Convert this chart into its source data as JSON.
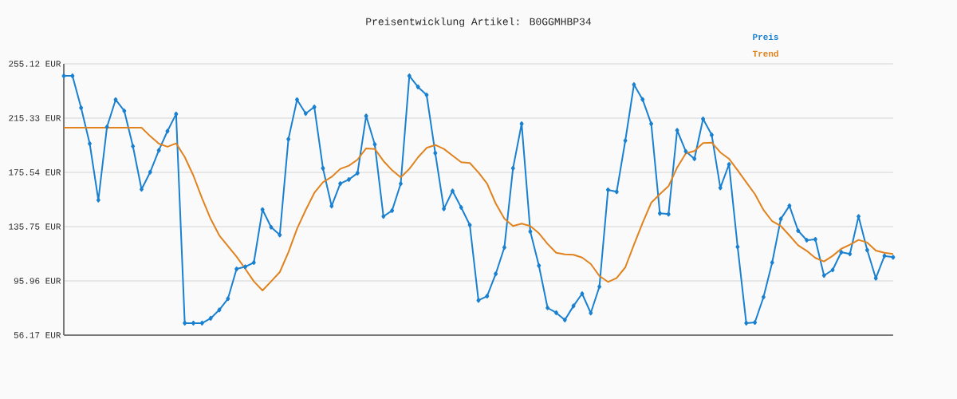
{
  "chart_data": {
    "type": "line",
    "title": "Preisentwicklung Artikel: B0GGMHBP34",
    "categories": [
      null,
      null,
      null,
      null,
      null,
      null,
      null,
      null,
      null,
      null,
      null,
      null,
      null,
      null,
      null,
      null,
      null,
      null,
      null,
      null,
      null,
      null,
      null,
      null,
      null,
      null,
      null,
      null,
      null,
      null,
      null,
      null,
      null,
      null,
      null,
      null,
      null,
      null,
      null,
      null,
      null,
      null,
      null,
      null,
      null,
      null,
      null,
      null,
      null,
      null,
      null,
      null,
      null,
      null,
      null,
      null,
      null,
      null,
      null,
      null,
      null,
      null,
      null,
      null,
      null,
      null,
      null,
      null,
      null,
      null,
      null,
      null,
      null,
      null,
      null,
      null,
      null,
      null,
      null,
      null,
      null,
      null,
      null,
      null,
      null,
      null,
      null,
      null,
      null,
      null,
      null,
      null,
      null,
      null,
      null,
      null,
      null
    ],
    "series": [
      {
        "name": "Preis",
        "color": "#1a80d0",
        "marker": "diamond",
        "values": [
          246.3,
          246.3,
          222.9,
          196.6,
          155.2,
          208.9,
          228.8,
          220.6,
          194.7,
          163.1,
          175.7,
          191.7,
          205.8,
          218.3,
          65.0,
          65.0,
          65.0,
          68.5,
          74.7,
          82.9,
          104.7,
          106.3,
          109.4,
          148.2,
          135.3,
          129.7,
          199.9,
          228.8,
          218.7,
          223.5,
          178.5,
          150.8,
          167.3,
          170.3,
          175.0,
          216.9,
          196.0,
          143.2,
          147.5,
          167.2,
          246.3,
          238.2,
          232.3,
          189.6,
          148.8,
          161.9,
          149.8,
          136.9,
          81.7,
          84.8,
          101.1,
          120.5,
          178.5,
          211.2,
          132.2,
          107.1,
          76.2,
          72.6,
          67.3,
          77.6,
          86.6,
          72.4,
          91.7,
          162.7,
          161.3,
          198.8,
          239.9,
          229.0,
          211.2,
          145.5,
          144.9,
          206.4,
          190.9,
          185.5,
          214.7,
          203.0,
          164.2,
          181.4,
          120.9,
          65.0,
          65.5,
          84.1,
          109.4,
          141.4,
          151.0,
          132.8,
          125.8,
          126.4,
          99.9,
          104.0,
          117.0,
          115.7,
          143.2,
          118.6,
          97.9,
          114.3,
          113.3
        ]
      },
      {
        "name": "Trend",
        "color": "#e0821e",
        "marker": "none",
        "values": [
          208.3,
          208.3,
          208.3,
          208.3,
          208.3,
          208.3,
          208.3,
          208.3,
          208.3,
          208.3,
          202.1,
          196.6,
          194.3,
          196.8,
          186.8,
          173.2,
          156.6,
          141.4,
          129.3,
          121.5,
          113.7,
          104.9,
          95.6,
          88.9,
          95.6,
          102.4,
          117.0,
          134.2,
          147.9,
          160.5,
          168.3,
          172.2,
          178.1,
          180.4,
          184.9,
          193.1,
          192.7,
          183.9,
          177.1,
          171.9,
          178.1,
          186.5,
          193.5,
          195.6,
          192.7,
          187.8,
          183.0,
          182.4,
          175.5,
          167.3,
          152.7,
          141.6,
          136.2,
          137.9,
          136.2,
          130.9,
          123.1,
          116.6,
          115.4,
          115.1,
          113.1,
          108.4,
          99.6,
          95.2,
          98.1,
          105.9,
          122.5,
          138.5,
          153.3,
          159.6,
          165.4,
          179.1,
          189.4,
          191.2,
          197.0,
          197.4,
          190.2,
          185.5,
          177.1,
          168.3,
          159.6,
          147.9,
          139.7,
          136.2,
          129.3,
          122.1,
          118.0,
          112.8,
          110.2,
          114.3,
          119.5,
          122.5,
          126.0,
          124.1,
          118.2,
          116.6,
          115.7
        ]
      }
    ],
    "ylim": [
      56.17,
      255.12
    ],
    "yticks": [
      {
        "value": 56.17,
        "label": "56.17 EUR"
      },
      {
        "value": 95.96,
        "label": "95.96 EUR"
      },
      {
        "value": 135.75,
        "label": "135.75 EUR"
      },
      {
        "value": 175.54,
        "label": "175.54 EUR"
      },
      {
        "value": 215.33,
        "label": "215.33 EUR"
      },
      {
        "value": 255.12,
        "label": "255.12 EUR"
      }
    ],
    "grid": "y",
    "legend": "top right",
    "tick_labels": "y",
    "line_style": "solid"
  }
}
